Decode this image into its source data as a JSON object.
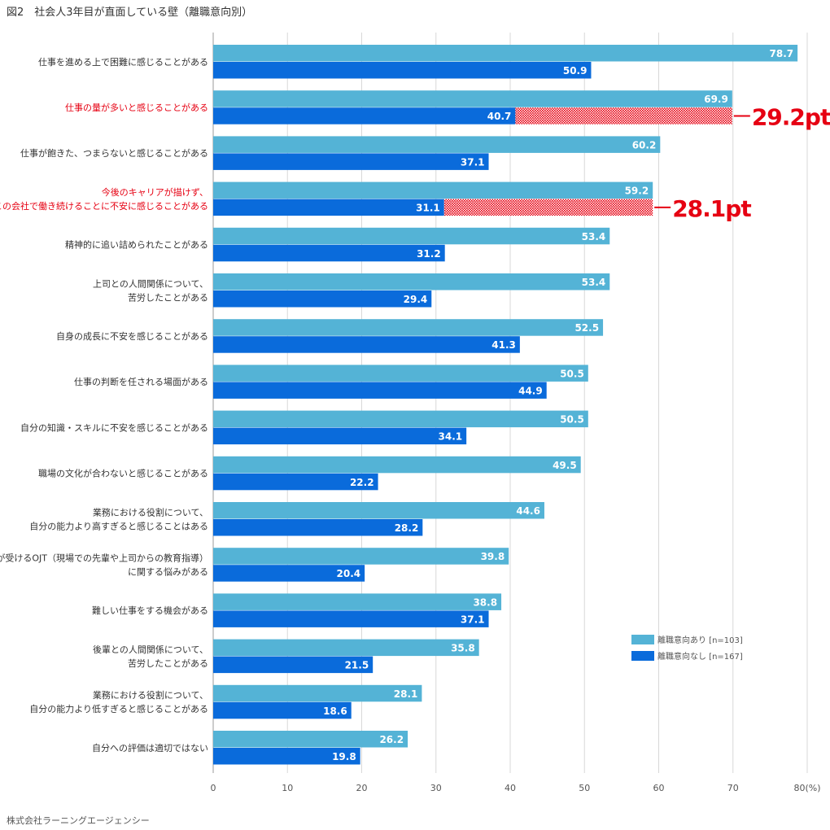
{
  "title": "図2　社会人3年目が直面している壁（離職意向別）",
  "source": "株式会社ラーニングエージェンシー",
  "colors": {
    "series1": "#54b3d6",
    "series2": "#0a6bdb",
    "highlight": "#e60012",
    "grid": "#d8d8d8",
    "axis": "#999999"
  },
  "chart_data": {
    "type": "bar",
    "orientation": "horizontal",
    "title": "社会人3年目が直面している壁（離職意向別）",
    "xlabel": "",
    "ylabel": "",
    "xlim": [
      0,
      80
    ],
    "ticks": [
      "0",
      "10",
      "20",
      "30",
      "40",
      "50",
      "60",
      "70",
      "80(%)"
    ],
    "grid": true,
    "legend_position": "right",
    "categories": [
      "仕事を進める上で困難に感じることがある",
      "仕事の量が多いと感じることがある",
      "仕事が飽きた、つまらないと感じることがある",
      "今後のキャリアが描けず、この会社で働き続けることに不安に感じることがある",
      "精神的に追い詰められたことがある",
      "上司との人間関係について、苦労したことがある",
      "自身の成長に不安を感じることがある",
      "仕事の判断を任される場面がある",
      "自分の知識・スキルに不安を感じることがある",
      "職場の文化が合わないと感じることがある",
      "業務における役割について、自分の能力より高すぎると感じることはある",
      "自分が受けるOJT（現場での先輩や上司からの教育指導）に関する悩みがある",
      "難しい仕事をする機会がある",
      "後輩との人間関係について、苦労したことがある",
      "業務における役割について、自分の能力より低すぎると感じることがある",
      "自分への評価は適切ではない"
    ],
    "category_lines": [
      [
        "仕事を進める上で困難に感じることがある"
      ],
      [
        "仕事の量が多いと感じることがある"
      ],
      [
        "仕事が飽きた、つまらないと感じることがある"
      ],
      [
        "今後のキャリアが描けず、",
        "この会社で働き続けることに不安に感じることがある"
      ],
      [
        "精神的に追い詰められたことがある"
      ],
      [
        "上司との人間関係について、",
        "苦労したことがある"
      ],
      [
        "自身の成長に不安を感じることがある"
      ],
      [
        "仕事の判断を任される場面がある"
      ],
      [
        "自分の知識・スキルに不安を感じることがある"
      ],
      [
        "職場の文化が合わないと感じることがある"
      ],
      [
        "業務における役割について、",
        "自分の能力より高すぎると感じることはある"
      ],
      [
        "自分が受けるOJT（現場での先輩や上司からの教育指導）",
        "に関する悩みがある"
      ],
      [
        "難しい仕事をする機会がある"
      ],
      [
        "後輩との人間関係について、",
        "苦労したことがある"
      ],
      [
        "業務における役割について、",
        "自分の能力より低すぎると感じることがある"
      ],
      [
        "自分への評価は適切ではない"
      ]
    ],
    "highlighted_categories": [
      1,
      3
    ],
    "series": [
      {
        "name": "離職意向あり [n=103]",
        "values": [
          78.7,
          69.9,
          60.2,
          59.2,
          53.4,
          53.4,
          52.5,
          50.5,
          50.5,
          49.5,
          44.6,
          39.8,
          38.8,
          35.8,
          28.1,
          26.2
        ]
      },
      {
        "name": "離職意向なし [n=167]",
        "values": [
          50.9,
          40.7,
          37.1,
          31.1,
          31.2,
          29.4,
          41.3,
          44.9,
          34.1,
          22.2,
          28.2,
          20.4,
          37.1,
          21.5,
          18.6,
          19.8
        ]
      }
    ],
    "annotations": [
      {
        "category_index": 1,
        "text": "29.2pt",
        "from": 40.7,
        "to": 69.9
      },
      {
        "category_index": 3,
        "text": "28.1pt",
        "from": 31.1,
        "to": 59.2
      }
    ]
  }
}
